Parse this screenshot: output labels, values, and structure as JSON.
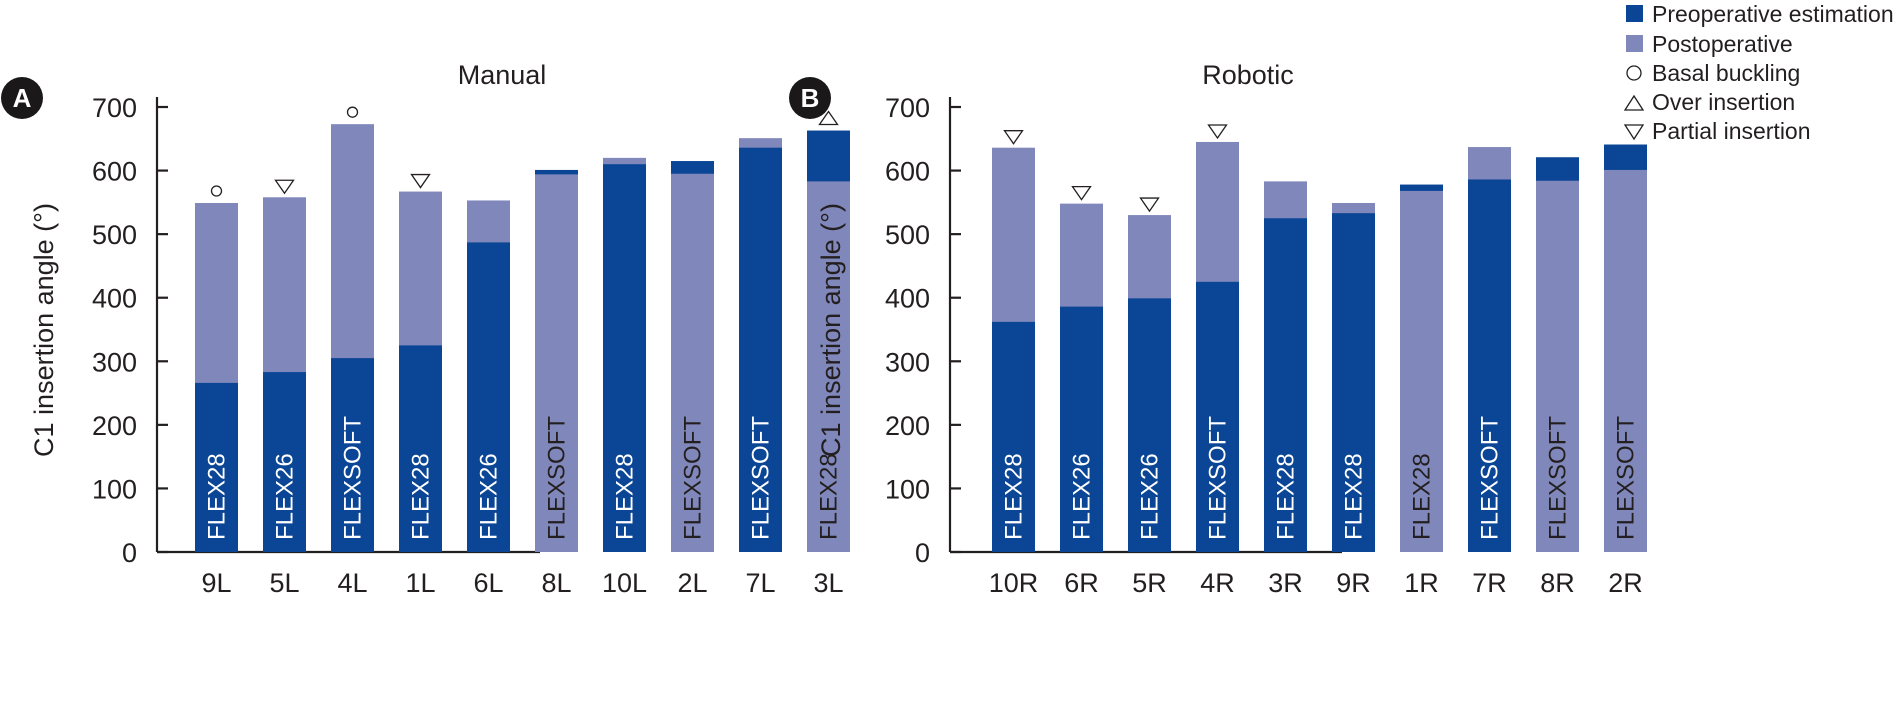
{
  "colors": {
    "preoperative": "#0b4595",
    "postoperative": "#8088bb",
    "axis": "#231f20"
  },
  "legend": {
    "items": [
      {
        "symbol": "square",
        "color_key": "preoperative",
        "label": "Preoperative estimation"
      },
      {
        "symbol": "square",
        "color_key": "postoperative",
        "label": "Postoperative"
      },
      {
        "symbol": "circle",
        "label": "Basal buckling"
      },
      {
        "symbol": "triangle-up",
        "label": "Over insertion"
      },
      {
        "symbol": "triangle-down",
        "label": "Partial insertion"
      }
    ],
    "placement": "top-right"
  },
  "chart_data": [
    {
      "type": "bar",
      "panel": "A",
      "title": "Manual",
      "xlabel": "",
      "ylabel": "C1 insertion angle (°)",
      "ylim": [
        0,
        700
      ],
      "yticks": [
        0,
        100,
        200,
        300,
        400,
        500,
        600,
        700
      ],
      "categories": [
        "9L",
        "5L",
        "4L",
        "1L",
        "6L",
        "8L",
        "10L",
        "2L",
        "7L",
        "3L"
      ],
      "series": [
        {
          "name": "Preoperative estimation",
          "values": [
            266,
            283,
            305,
            325,
            487,
            601,
            610,
            615,
            636,
            663
          ]
        },
        {
          "name": "Postoperative",
          "values": [
            549,
            558,
            673,
            567,
            553,
            594,
            620,
            595,
            651,
            583
          ]
        }
      ],
      "electrodes": [
        "FLEX28",
        "FLEX26",
        "FLEXSOFT",
        "FLEX28",
        "FLEX26",
        "FLEXSOFT",
        "FLEX28",
        "FLEXSOFT",
        "FLEXSOFT",
        "FLEX28"
      ],
      "markers": [
        "basal-buckling",
        "partial-insertion",
        "basal-buckling",
        "partial-insertion",
        "",
        "",
        "",
        "",
        "",
        "over-insertion"
      ]
    },
    {
      "type": "bar",
      "panel": "B",
      "title": "Robotic",
      "xlabel": "",
      "ylabel": "C1 insertion angle (°)",
      "ylim": [
        0,
        700
      ],
      "yticks": [
        0,
        100,
        200,
        300,
        400,
        500,
        600,
        700
      ],
      "categories": [
        "10R",
        "6R",
        "5R",
        "4R",
        "3R",
        "9R",
        "1R",
        "7R",
        "8R",
        "2R"
      ],
      "series": [
        {
          "name": "Preoperative estimation",
          "values": [
            362,
            386,
            399,
            425,
            525,
            533,
            578,
            586,
            621,
            641
          ]
        },
        {
          "name": "Postoperative",
          "values": [
            636,
            548,
            530,
            645,
            583,
            549,
            568,
            637,
            584,
            601
          ]
        }
      ],
      "electrodes": [
        "FLEX28",
        "FLEX26",
        "FLEX26",
        "FLEXSOFT",
        "FLEX28",
        "FLEX28",
        "FLEX28",
        "FLEXSOFT",
        "FLEXSOFT",
        "FLEXSOFT"
      ],
      "markers": [
        "partial-insertion",
        "partial-insertion",
        "partial-insertion",
        "partial-insertion",
        "",
        "",
        "",
        "",
        "",
        ""
      ]
    }
  ]
}
